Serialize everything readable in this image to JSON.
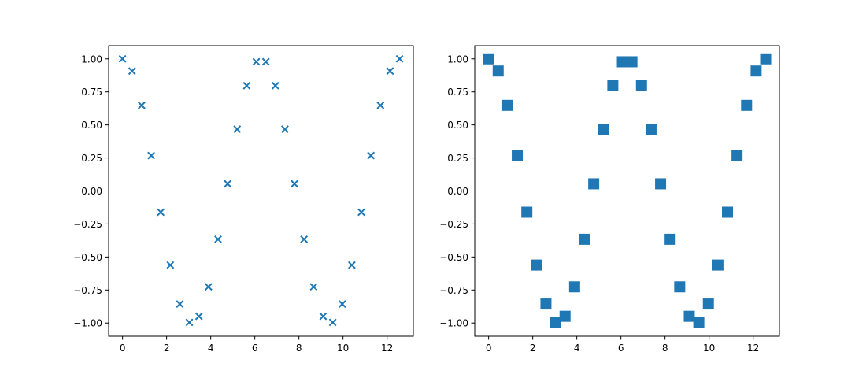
{
  "chart_data": [
    {
      "type": "scatter",
      "marker": "x",
      "color": "#1f77b4",
      "grid": false,
      "xlim": [
        -0.63,
        13.19
      ],
      "ylim": [
        -1.1,
        1.1
      ],
      "xticks": [
        0,
        2,
        4,
        6,
        8,
        10,
        12
      ],
      "xtick_labels": [
        "0",
        "2",
        "4",
        "6",
        "8",
        "10",
        "12"
      ],
      "yticks": [
        -1,
        -0.75,
        -0.5,
        -0.25,
        0,
        0.25,
        0.5,
        0.75,
        1
      ],
      "ytick_labels": [
        "−1.00",
        "−0.75",
        "−0.50",
        "−0.25",
        "0.00",
        "0.25",
        "0.50",
        "0.75",
        "1.00"
      ],
      "x": [
        0,
        0.433,
        0.867,
        1.3,
        1.733,
        2.167,
        2.6,
        3.033,
        3.467,
        3.9,
        4.333,
        4.767,
        5.2,
        5.633,
        6.067,
        6.5,
        6.933,
        7.367,
        7.8,
        8.233,
        8.667,
        9.1,
        9.533,
        9.967,
        10.4,
        10.833,
        11.267,
        11.7,
        12.133,
        12.566
      ],
      "y": [
        1.0,
        0.908,
        0.648,
        0.268,
        -0.161,
        -0.561,
        -0.856,
        -0.995,
        -0.949,
        -0.726,
        -0.366,
        0.054,
        0.468,
        0.797,
        0.978,
        0.978,
        0.797,
        0.468,
        0.054,
        -0.366,
        -0.726,
        -0.949,
        -0.995,
        -0.856,
        -0.561,
        -0.161,
        0.268,
        0.648,
        0.908,
        1.0
      ]
    },
    {
      "type": "scatter",
      "marker": "square",
      "color": "#1f77b4",
      "grid": false,
      "xlim": [
        -0.63,
        13.19
      ],
      "ylim": [
        -1.1,
        1.1
      ],
      "xticks": [
        0,
        2,
        4,
        6,
        8,
        10,
        12
      ],
      "xtick_labels": [
        "0",
        "2",
        "4",
        "6",
        "8",
        "10",
        "12"
      ],
      "yticks": [
        -1,
        -0.75,
        -0.5,
        -0.25,
        0,
        0.25,
        0.5,
        0.75,
        1
      ],
      "ytick_labels": [
        "−1.00",
        "−0.75",
        "−0.50",
        "−0.25",
        "0.00",
        "0.25",
        "0.50",
        "0.75",
        "1.00"
      ],
      "x": [
        0,
        0.433,
        0.867,
        1.3,
        1.733,
        2.167,
        2.6,
        3.033,
        3.467,
        3.9,
        4.333,
        4.767,
        5.2,
        5.633,
        6.067,
        6.5,
        6.933,
        7.367,
        7.8,
        8.233,
        8.667,
        9.1,
        9.533,
        9.967,
        10.4,
        10.833,
        11.267,
        11.7,
        12.133,
        12.566
      ],
      "y": [
        1.0,
        0.908,
        0.648,
        0.268,
        -0.161,
        -0.561,
        -0.856,
        -0.995,
        -0.949,
        -0.726,
        -0.366,
        0.054,
        0.468,
        0.797,
        0.978,
        0.978,
        0.797,
        0.468,
        0.054,
        -0.366,
        -0.726,
        -0.949,
        -0.995,
        -0.856,
        -0.561,
        -0.161,
        0.268,
        0.648,
        0.908,
        1.0
      ]
    }
  ]
}
